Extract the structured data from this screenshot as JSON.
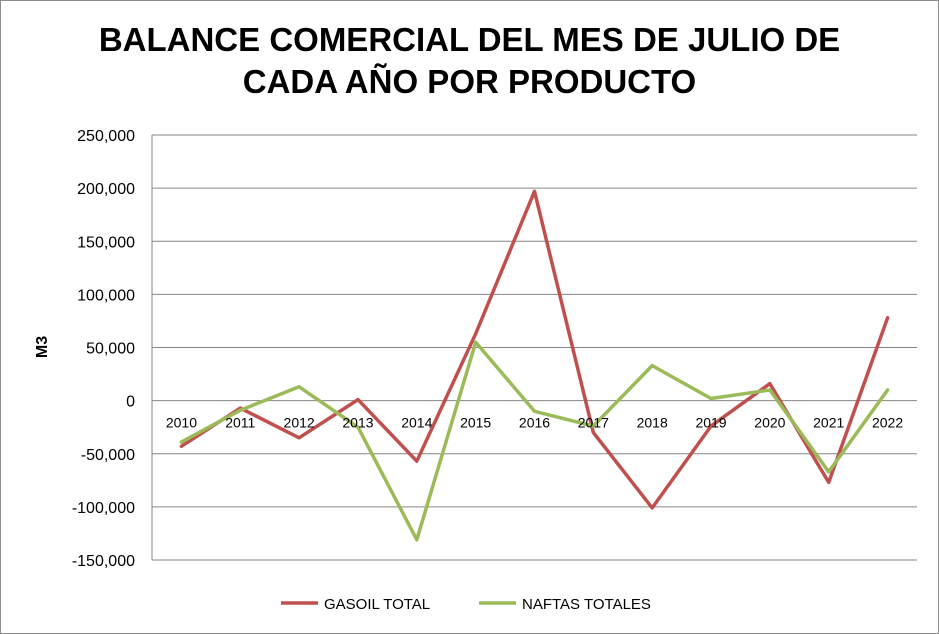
{
  "chart_data": {
    "type": "line",
    "title_lines": [
      "BALANCE COMERCIAL DEL MES DE JULIO DE",
      "CADA AÑO POR PRODUCTO"
    ],
    "xlabel": "",
    "ylabel": "M3",
    "ylim": [
      -150000,
      250000
    ],
    "ytick_step": 50000,
    "yticks": [
      "-150,000",
      "-100,000",
      "-50,000",
      "0",
      "50,000",
      "100,000",
      "150,000",
      "200,000",
      "250,000"
    ],
    "categories": [
      "2010",
      "2011",
      "2012",
      "2013",
      "2014",
      "2015",
      "2016",
      "2017",
      "2018",
      "2019",
      "2020",
      "2021",
      "2022"
    ],
    "grid": true,
    "legend_position": "bottom",
    "series": [
      {
        "name": "GASOIL TOTAL",
        "color": "#c0504d",
        "values": [
          -43000,
          -7000,
          -35000,
          1000,
          -57000,
          63000,
          197000,
          -30000,
          -101000,
          -24000,
          16000,
          -77000,
          78000
        ]
      },
      {
        "name": "NAFTAS TOTALES",
        "color": "#9bbb59",
        "values": [
          -39000,
          -9000,
          13000,
          -25000,
          -131000,
          55000,
          -10000,
          -24000,
          33000,
          2000,
          10000,
          -67000,
          10000
        ]
      }
    ]
  }
}
